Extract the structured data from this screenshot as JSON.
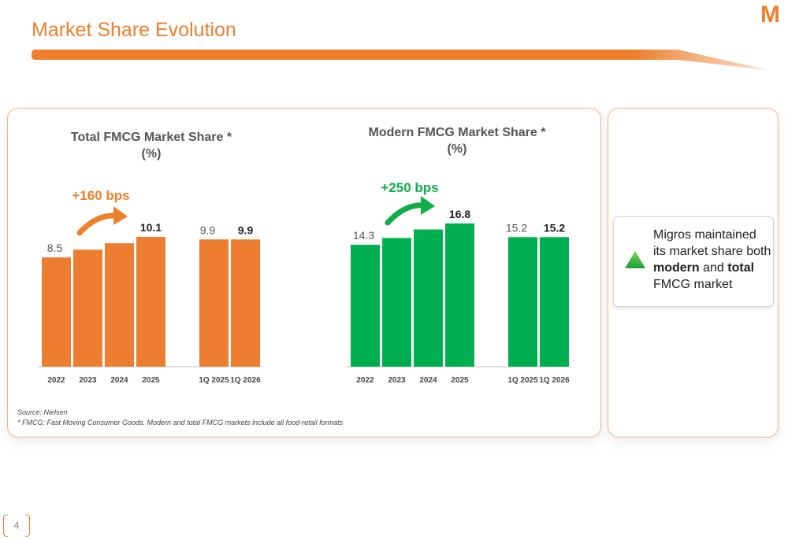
{
  "header": {
    "title": "Market Share Evolution",
    "logo": "M"
  },
  "colors": {
    "accent": "#ee7f2d",
    "orange_bar": "#ed7d31",
    "green_bar": "#00b050",
    "green_text": "#12ad4b",
    "panel_border": "#f3b27e"
  },
  "chart_data": [
    {
      "type": "bar",
      "title": "Total FMCG Market Share *",
      "subtitle": "(%)",
      "categories": [
        "2022",
        "2023",
        "2024",
        "2025",
        "1Q 2025",
        "1Q 2026"
      ],
      "values": [
        8.5,
        9.1,
        9.6,
        10.1,
        9.9,
        9.9
      ],
      "data_labels": [
        "8.5",
        "",
        "",
        "10.1",
        "9.9",
        "9.9"
      ],
      "bold_labels": [
        false,
        false,
        false,
        true,
        false,
        true
      ],
      "annotation": "+160 bps",
      "color": "#ed7d31",
      "ylim": [
        0,
        10.1
      ]
    },
    {
      "type": "bar",
      "title": "Modern FMCG Market Share *",
      "subtitle": "(%)",
      "categories": [
        "2022",
        "2023",
        "2024",
        "2025",
        "1Q 2025",
        "1Q 2026"
      ],
      "values": [
        14.3,
        15.1,
        16.1,
        16.8,
        15.2,
        15.2
      ],
      "data_labels": [
        "14.3",
        "",
        "",
        "16.8",
        "15.2",
        "15.2"
      ],
      "bold_labels": [
        false,
        false,
        false,
        true,
        false,
        true
      ],
      "annotation": "+250 bps",
      "color": "#00b050",
      "ylim": [
        0,
        16.8
      ]
    }
  ],
  "callout": {
    "line1": "Migros maintained its market share both",
    "bold1": "modern",
    "mid": "and",
    "bold2": "total",
    "line2": "FMCG market"
  },
  "footnotes": {
    "source": "Source: Nielsen",
    "note": "* FMCG: Fast Moving Consumer Goods. Modern and total FMCG markets include all food-retail formats"
  },
  "page": {
    "number": "4"
  }
}
